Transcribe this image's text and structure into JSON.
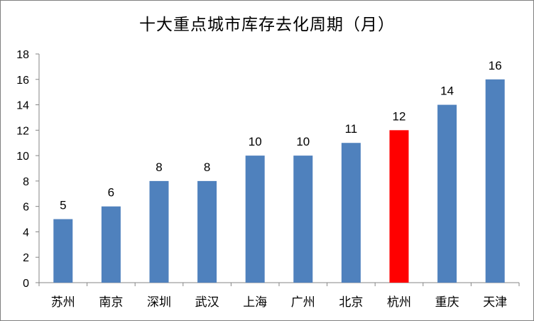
{
  "chart_data": {
    "type": "bar",
    "title": "十大重点城市库存去化周期（月）",
    "categories": [
      "苏州",
      "南京",
      "深圳",
      "武汉",
      "上海",
      "广州",
      "北京",
      "杭州",
      "重庆",
      "天津"
    ],
    "values": [
      5,
      6,
      8,
      8,
      10,
      10,
      11,
      12,
      14,
      16
    ],
    "data_labels": [
      "5",
      "6",
      "8",
      "8",
      "10",
      "10",
      "11",
      "12",
      "14",
      "16"
    ],
    "xlabel": "",
    "ylabel": "",
    "ylim": [
      0,
      18
    ],
    "yticks": [
      "0",
      "2",
      "4",
      "6",
      "8",
      "10",
      "12",
      "14",
      "16",
      "18"
    ],
    "grid": false,
    "legend": "none",
    "colors": {
      "bar": "#4f81bd",
      "highlight": "#ff0000",
      "axis": "#868686"
    },
    "highlight_category": "杭州"
  }
}
